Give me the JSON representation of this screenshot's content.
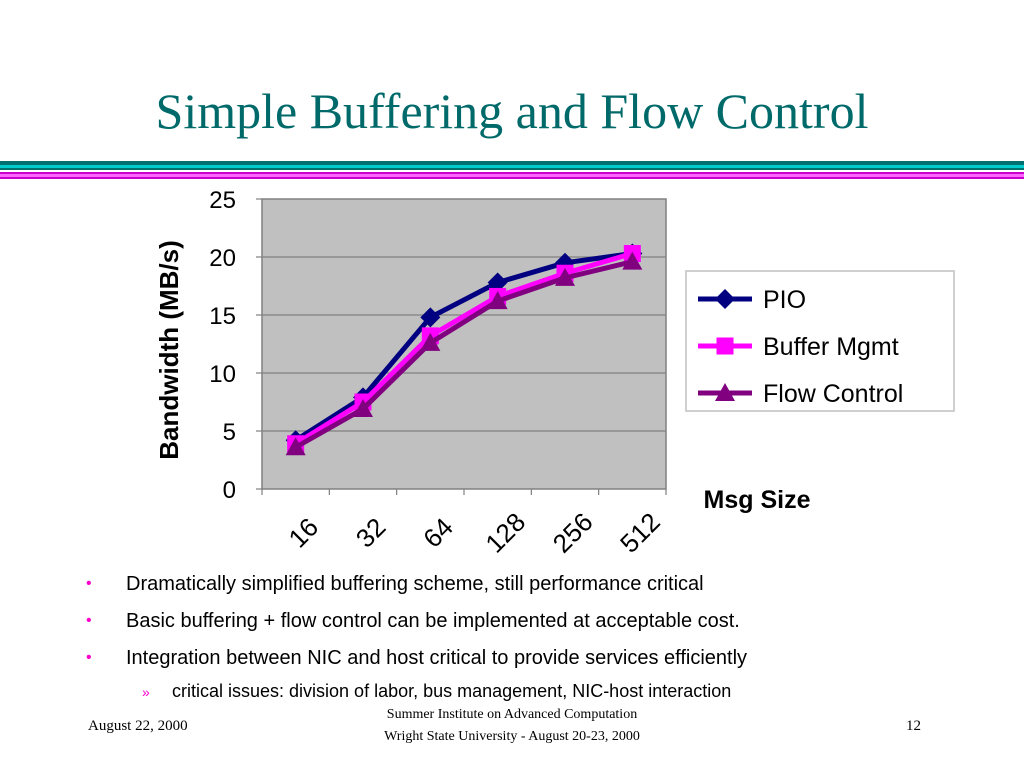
{
  "slide": {
    "title": "Simple Buffering and Flow Control",
    "bullets": [
      {
        "text": "Dramatically simplified buffering scheme, still performance critical",
        "marker": "•",
        "level": 1
      },
      {
        "text": "Basic buffering + flow control can be implemented at acceptable cost.",
        "marker": "•",
        "level": 1
      },
      {
        "text": "Integration between NIC and host critical to provide services efficiently",
        "marker": "•",
        "level": 1
      },
      {
        "text": "critical issues: division of labor, bus management, NIC-host interaction",
        "marker": "»",
        "level": 2
      }
    ],
    "footer": {
      "date": "August 22, 2000",
      "center_line1": "Summer Institute on Advanced Computation",
      "center_line2": "Wright State University - August 20-23, 2000",
      "page_number": "12"
    },
    "colors": {
      "title": "#006a6a",
      "rule_teal": "#007070",
      "rule_magenta": "#cc00cc",
      "bullet": "#ff00cc"
    }
  },
  "chart_data": {
    "type": "line",
    "categories": [
      "16",
      "32",
      "64",
      "128",
      "256",
      "512"
    ],
    "ylabel": "Bandwidth (MB/s)",
    "xlabel": "Msg Size",
    "ylim": [
      0,
      25
    ],
    "yticks": [
      "0",
      "5",
      "10",
      "15",
      "20",
      "25"
    ],
    "grid": true,
    "legend_position": "right",
    "plot_background": "#c0c0c0",
    "series": [
      {
        "name": "PIO",
        "marker": "diamond",
        "color": "#000080",
        "values": [
          4.2,
          7.9,
          14.8,
          17.8,
          19.5,
          20.3
        ]
      },
      {
        "name": "Buffer Mgmt",
        "marker": "square",
        "color": "#ff00ff",
        "values": [
          3.9,
          7.5,
          13.2,
          16.6,
          18.6,
          20.3
        ]
      },
      {
        "name": "Flow Control",
        "marker": "triangle",
        "color": "#800080",
        "values": [
          3.6,
          6.9,
          12.6,
          16.2,
          18.2,
          19.6
        ]
      }
    ]
  }
}
